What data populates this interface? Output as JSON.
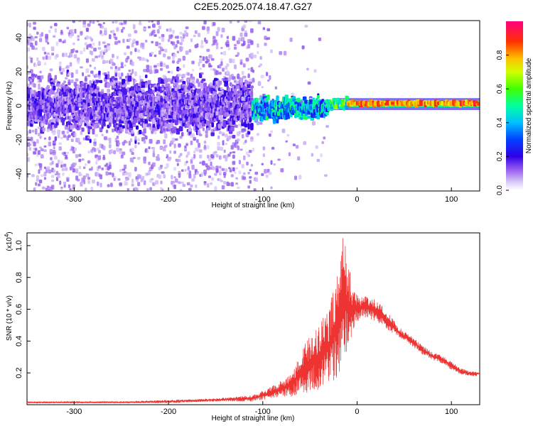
{
  "figure_title": "C2E5.2025.074.18.47.G27",
  "chart_data": [
    {
      "type": "heatmap",
      "xlabel": "Height of straight line (km)",
      "ylabel": "Frequency (Hz)",
      "xlim": [
        -350,
        130
      ],
      "ylim": [
        -50,
        50
      ],
      "xticks": [
        -300,
        -200,
        -100,
        0,
        100
      ],
      "yticks": [
        -40,
        -20,
        0,
        20,
        40
      ],
      "colorbar": {
        "label": "Normalized spectral amplitude",
        "range": [
          0.0,
          1.0
        ],
        "ticks": [
          "0.0",
          "0.2",
          "0.4",
          "0.6",
          "0.8"
        ],
        "colormap": [
          "#ffffff",
          "#b088f0",
          "#3a00e0",
          "#0000ff",
          "#00c0ff",
          "#00ff80",
          "#a0ff00",
          "#ffff00",
          "#ff8000",
          "#ff0000",
          "#ff0080"
        ]
      },
      "regions": [
        {
          "x_range": [
            -350,
            -110
          ],
          "frequency_spread": [
            -50,
            50
          ],
          "core_band": [
            -15,
            15
          ],
          "amplitude": "0.1-0.3"
        },
        {
          "x_range": [
            -110,
            -30
          ],
          "frequency_spread": [
            -20,
            12
          ],
          "core_band": [
            -5,
            8
          ],
          "amplitude": "0.3-0.6"
        },
        {
          "x_range": [
            -30,
            130
          ],
          "frequency_spread": [
            -2,
            4
          ],
          "core_band": [
            0,
            2
          ],
          "amplitude": "0.6-1.0"
        }
      ]
    },
    {
      "type": "line",
      "xlabel": "Height of straight line (km)",
      "ylabel": "SNR (10 * v/v)",
      "y_multiplier": "(x10^4)",
      "xlim": [
        -350,
        130
      ],
      "ylim": [
        0,
        1.08
      ],
      "xticks": [
        -300,
        -200,
        -100,
        0,
        100
      ],
      "yticks": [
        "0.2",
        "0.4",
        "0.6",
        "0.8",
        "1.0"
      ],
      "color": "#ee3333",
      "envelope": {
        "x": [
          -350,
          -300,
          -250,
          -200,
          -150,
          -110,
          -90,
          -70,
          -60,
          -50,
          -40,
          -30,
          -25,
          -20,
          -15,
          -10,
          -5,
          0,
          10,
          20,
          30,
          40,
          50,
          60,
          70,
          80,
          90,
          100,
          110,
          120,
          130
        ],
        "low": [
          0.01,
          0.01,
          0.01,
          0.01,
          0.02,
          0.02,
          0.04,
          0.05,
          0.06,
          0.08,
          0.09,
          0.12,
          0.15,
          0.18,
          0.25,
          0.3,
          0.45,
          0.52,
          0.55,
          0.52,
          0.48,
          0.44,
          0.4,
          0.36,
          0.31,
          0.28,
          0.26,
          0.22,
          0.19,
          0.18,
          0.18
        ],
        "high": [
          0.02,
          0.02,
          0.02,
          0.03,
          0.04,
          0.06,
          0.12,
          0.2,
          0.32,
          0.45,
          0.5,
          0.62,
          0.75,
          0.9,
          1.05,
          0.95,
          0.72,
          0.7,
          0.68,
          0.66,
          0.6,
          0.52,
          0.46,
          0.42,
          0.37,
          0.33,
          0.31,
          0.27,
          0.23,
          0.21,
          0.21
        ]
      }
    }
  ]
}
